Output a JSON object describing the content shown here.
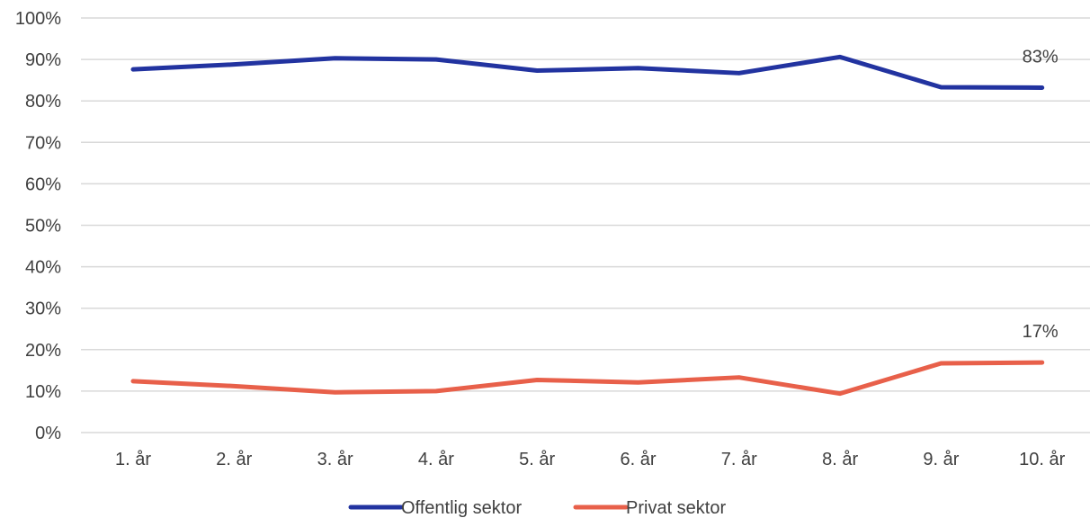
{
  "chart_data": {
    "type": "line",
    "categories": [
      "1. år",
      "2. år",
      "3. år",
      "4. år",
      "5. år",
      "6. år",
      "7. år",
      "8. år",
      "9. år",
      "10. år"
    ],
    "series": [
      {
        "name": "Offentlig sektor",
        "color": "#2233a0",
        "values": [
          87.6,
          88.8,
          90.3,
          90.0,
          87.3,
          87.9,
          86.7,
          90.6,
          83.3,
          83.2
        ],
        "end_label": "83%"
      },
      {
        "name": "Privat sektor",
        "color": "#e8604a",
        "values": [
          12.4,
          11.2,
          9.7,
          10.0,
          12.7,
          12.1,
          13.3,
          9.4,
          16.7,
          16.9
        ],
        "end_label": "17%"
      }
    ],
    "ylim": [
      0,
      100
    ],
    "ytick_step": 10,
    "ytick_labels": [
      "0%",
      "10%",
      "20%",
      "30%",
      "40%",
      "50%",
      "60%",
      "70%",
      "80%",
      "90%",
      "100%"
    ],
    "grid": true,
    "legend_position": "bottom",
    "title": "",
    "xlabel": "",
    "ylabel": ""
  }
}
